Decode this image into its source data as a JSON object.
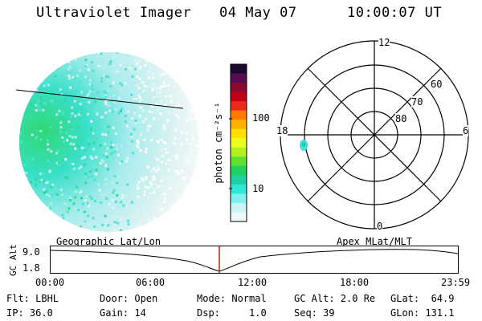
{
  "header": {
    "instrument": "Ultraviolet Imager",
    "date": "04 May 07",
    "time": "10:00:07 UT"
  },
  "colorbar": {
    "label": "photon cm⁻²s⁻¹",
    "ticks": [
      "100",
      "10"
    ],
    "colors": [
      "#1a0a2e",
      "#5a0a4e",
      "#8a0a2e",
      "#c00018",
      "#ea2a1a",
      "#ff7a00",
      "#ffb000",
      "#ffe000",
      "#e8ff20",
      "#b0f020",
      "#60e030",
      "#20d060",
      "#20d0a0",
      "#30e8d8",
      "#80f0f0",
      "#c8f4f4",
      "#eef8f8"
    ]
  },
  "polar_plot": {
    "mlt_labels": [
      "12",
      "18",
      "6",
      "0"
    ],
    "lat_labels": [
      "60",
      "70",
      "80"
    ]
  },
  "timeline": {
    "axis_label": "GC Alt",
    "left_title": "Geographic Lat/Lon",
    "right_title": "Apex MLat/MLT",
    "y_ticks": [
      "9.0",
      "1.8"
    ],
    "x_ticks": [
      "00:00",
      "06:00",
      "12:00",
      "18:00",
      "23:59"
    ],
    "marker_color": "#e00000"
  },
  "status": {
    "flt": "Flt: LBHL",
    "ip": "IP: 36.0",
    "door": "Door: Open",
    "gain": "Gain: 14",
    "mode": "Mode: Normal",
    "dsp": "Dsp:     1.0",
    "gc_alt": "GC Alt: 2.0 Re",
    "seq": "Seq: 39",
    "glat": "GLat:  64.9",
    "glon": "GLon: 131.1"
  }
}
